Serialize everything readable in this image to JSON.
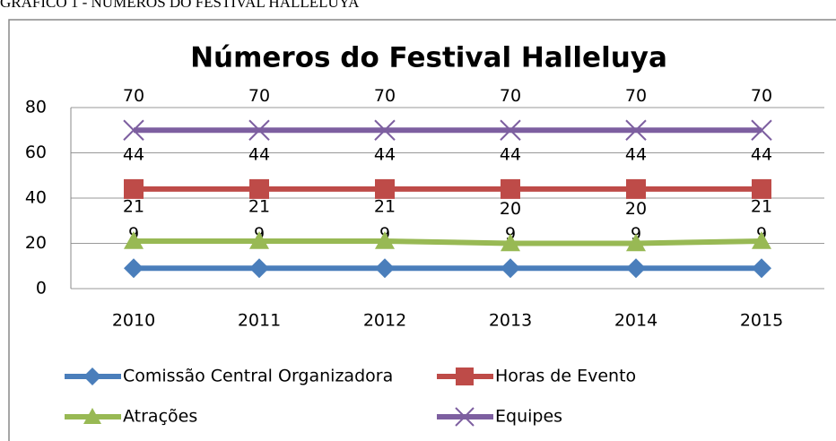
{
  "caption": "GRÁFICO 1 - NÚMEROS DO FESTIVAL HALLELUYA",
  "chart_data": {
    "type": "line",
    "title": "Números do Festival Halleluya",
    "categories": [
      "2010",
      "2011",
      "2012",
      "2013",
      "2014",
      "2015"
    ],
    "series": [
      {
        "name": "Comissão Central Organizadora",
        "color": "#4a7ebb",
        "marker": "diamond",
        "values": [
          9,
          9,
          9,
          9,
          9,
          9
        ]
      },
      {
        "name": "Horas de Evento",
        "color": "#be4b48",
        "marker": "square",
        "values": [
          44,
          44,
          44,
          44,
          44,
          44
        ]
      },
      {
        "name": "Atrações",
        "color": "#98b954",
        "marker": "triangle",
        "values": [
          21,
          21,
          21,
          20,
          20,
          21
        ]
      },
      {
        "name": "Equipes",
        "color": "#7d5fa0",
        "marker": "x",
        "values": [
          70,
          70,
          70,
          70,
          70,
          70
        ]
      }
    ],
    "ylim": [
      0,
      80
    ],
    "yticks": [
      0,
      20,
      40,
      60,
      80
    ],
    "grid": true,
    "legend": "bottom"
  }
}
